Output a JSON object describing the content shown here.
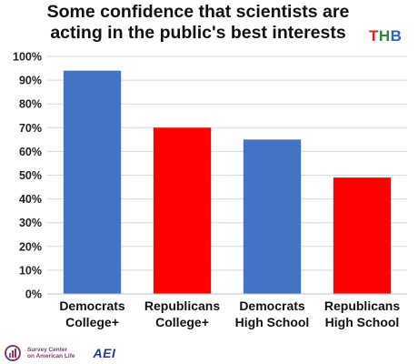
{
  "chart_data": {
    "type": "bar",
    "title_lines": [
      "Some confidence that scientists are",
      "acting in the public's best interests"
    ],
    "categories": [
      [
        "Democrats",
        "College+"
      ],
      [
        "Republicans",
        "College+"
      ],
      [
        "Democrats",
        "High School"
      ],
      [
        "Republicans",
        "High School"
      ]
    ],
    "values": [
      94,
      70,
      65,
      49
    ],
    "bar_colors": [
      "#4472c4",
      "#ff0000",
      "#4472c4",
      "#ff0000"
    ],
    "ylim": [
      0,
      100
    ],
    "yticks": [
      0,
      10,
      20,
      30,
      40,
      50,
      60,
      70,
      80,
      90,
      100
    ],
    "ytick_labels": [
      "0%",
      "10%",
      "20%",
      "30%",
      "40%",
      "50%",
      "60%",
      "70%",
      "80%",
      "90%",
      "100%"
    ],
    "grid": true,
    "legend": "none"
  },
  "brand": {
    "letters": [
      "T",
      "H",
      "B"
    ],
    "colors": [
      "#d6211f",
      "#2c8c3a",
      "#2a64c5"
    ]
  },
  "footer": {
    "survey_center_lines": [
      "Survey Center",
      "on American Life"
    ],
    "aei": "AEI"
  }
}
